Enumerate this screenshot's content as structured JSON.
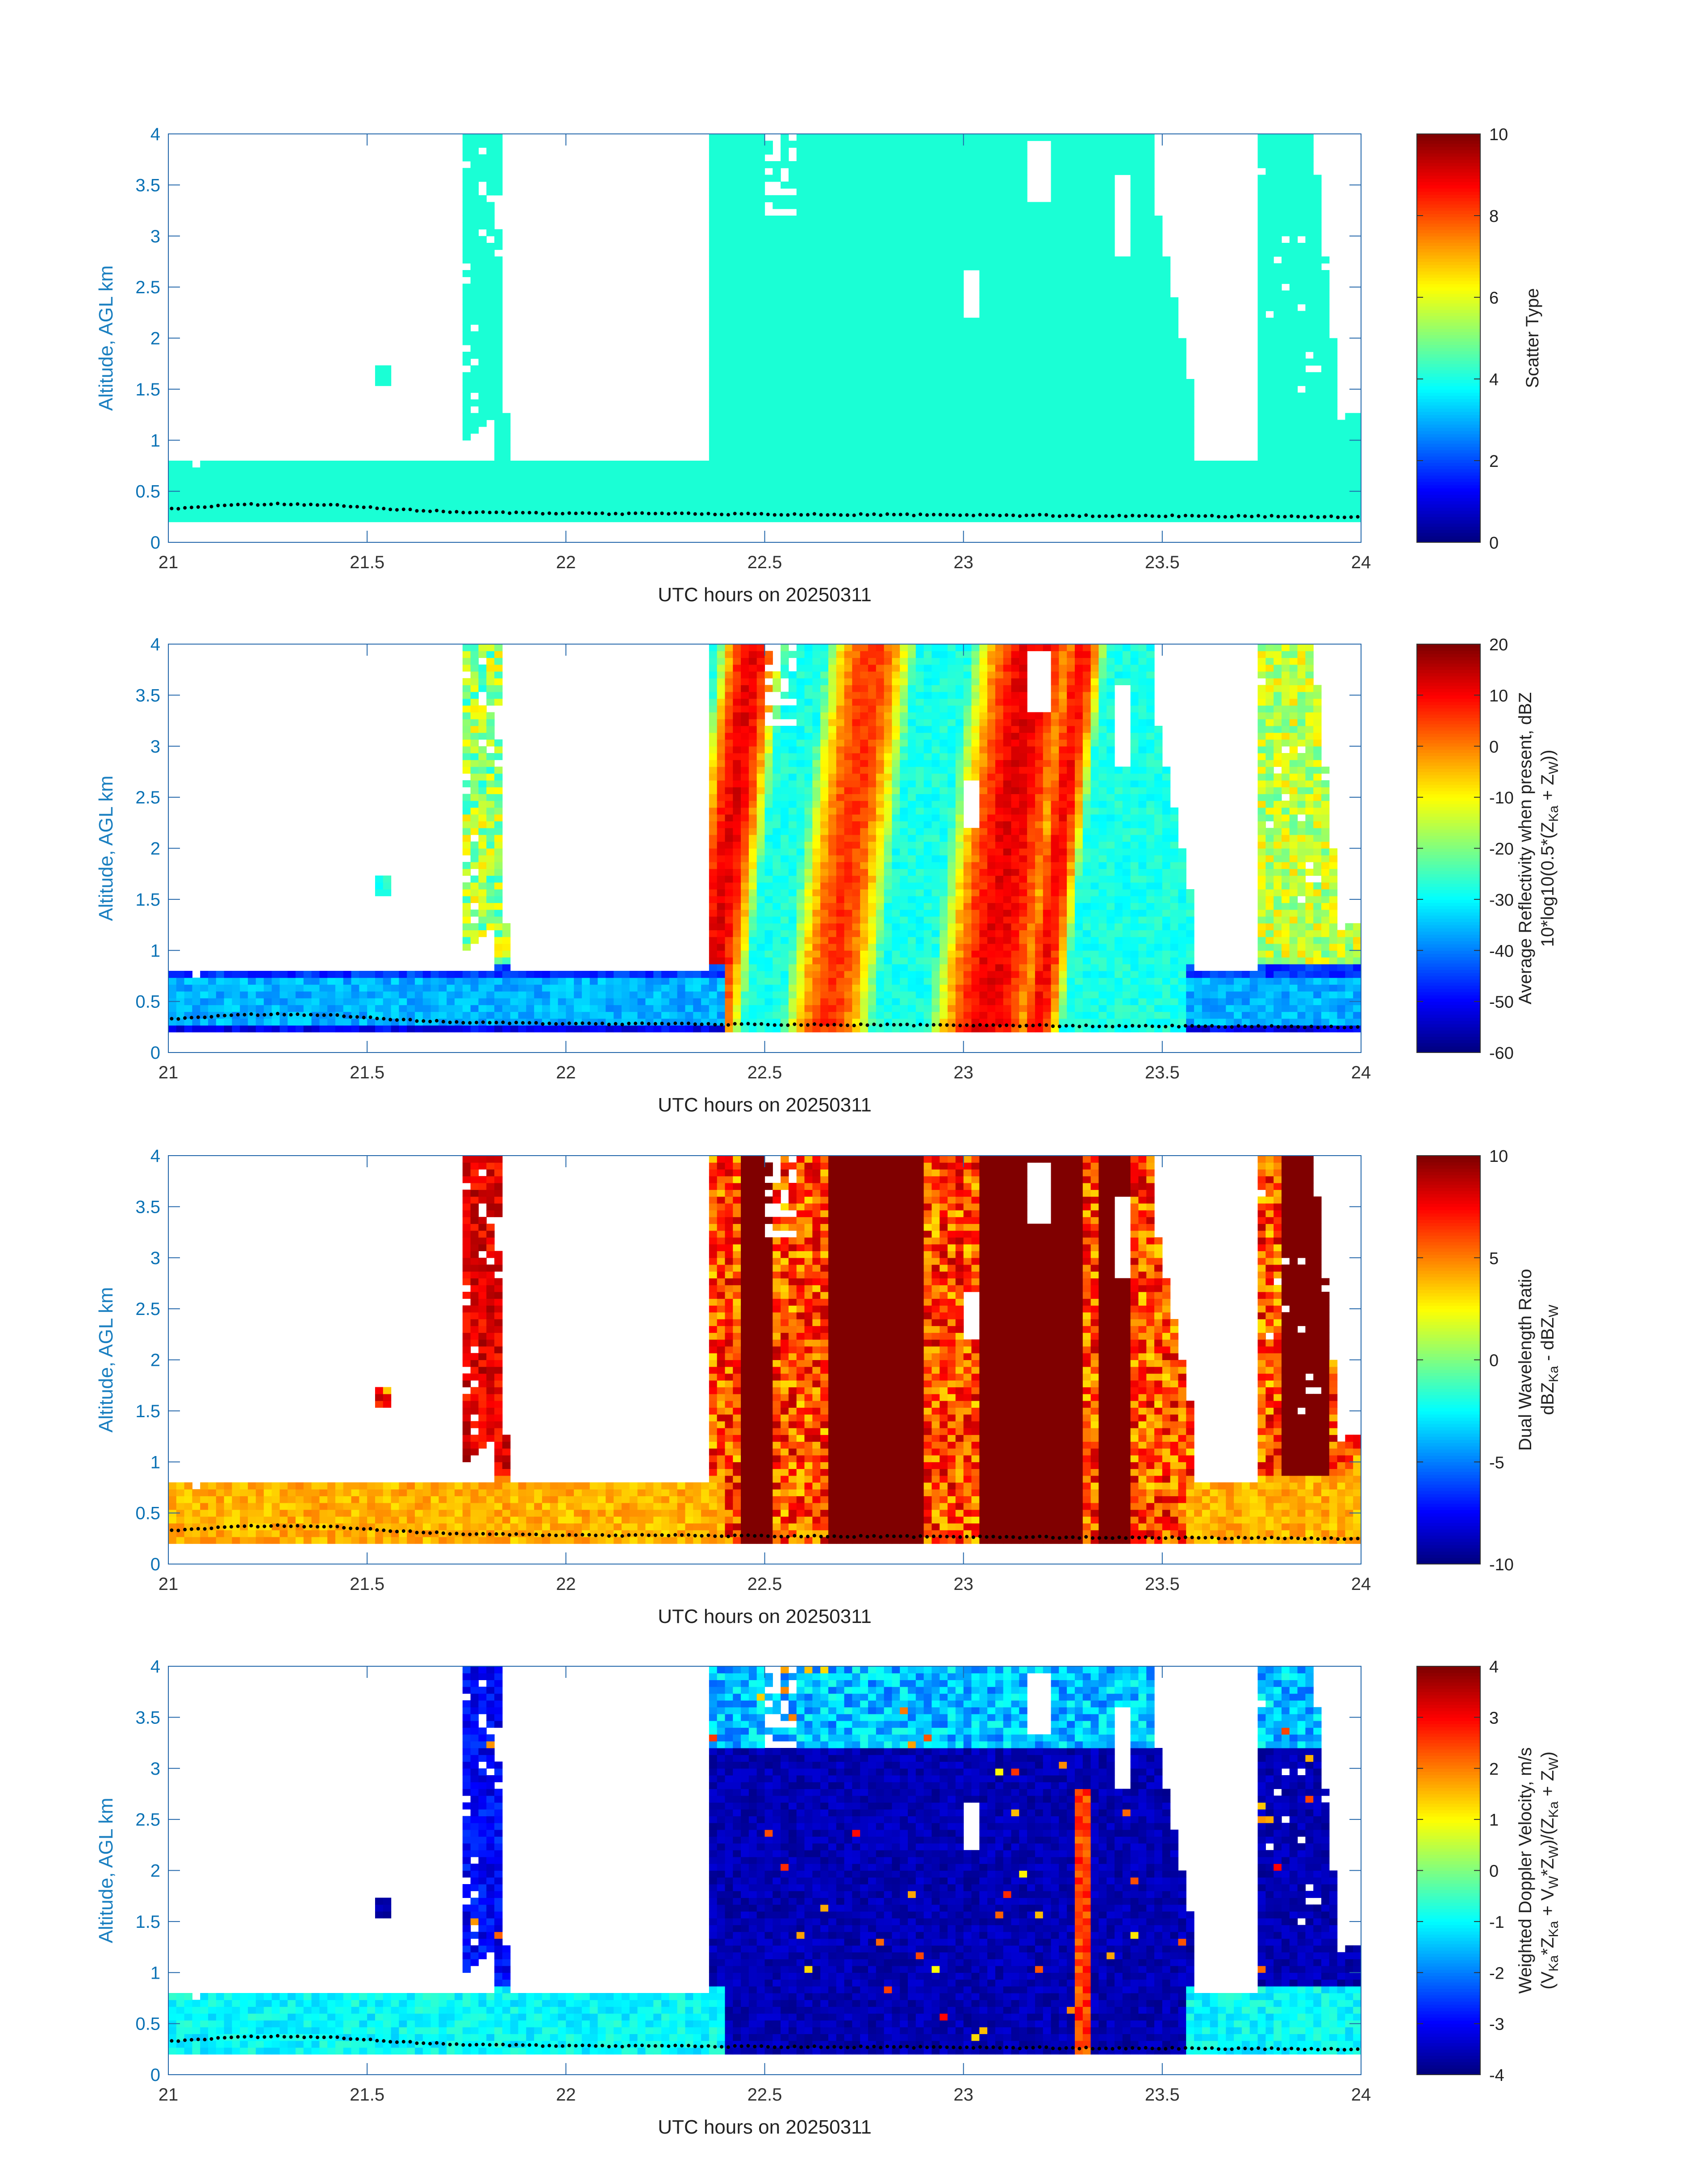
{
  "figure": {
    "panels_count": 4
  },
  "chart_data": [
    {
      "type": "heatmap",
      "title": "",
      "xlabel": "UTC hours on 20250311",
      "ylabel": "Altitude, AGL km",
      "xlim": [
        21,
        24
      ],
      "ylim": [
        0,
        4
      ],
      "x_ticks": [
        "21",
        "21.5",
        "22",
        "22.5",
        "23",
        "23.5",
        "24"
      ],
      "y_ticks": [
        "0",
        "0.5",
        "1",
        "1.5",
        "2",
        "2.5",
        "3",
        "3.5",
        "4"
      ],
      "colorbar": {
        "label_lines": [
          "Scatter Type"
        ],
        "range": [
          0,
          10
        ],
        "ticks": [
          "0",
          "2",
          "4",
          "6",
          "8",
          "10"
        ],
        "colormap": "jet"
      },
      "field_description": "Uniform value ~4 (cyan) wherever echo present",
      "echo_mask": {
        "boundary_layer_top_km": 0.8,
        "boundary_layer_bottom_km": 0.2,
        "shafts": [
          {
            "x": [
              21.75,
              21.85
            ],
            "top_km": 4.0,
            "bottom_km": 1.0
          },
          {
            "x": [
              22.37,
              22.6
            ],
            "top_km": 4.0,
            "bottom_km": 0.2
          },
          {
            "x": [
              22.6,
              23.55
            ],
            "top_km": 4.0,
            "bottom_km": 0.2
          },
          {
            "x": [
              23.75,
              23.98
            ],
            "top_km": 4.0,
            "bottom_km": 0.8
          }
        ],
        "isolated_blob": {
          "x": [
            21.53,
            21.55
          ],
          "y_km": [
            1.55,
            1.75
          ]
        }
      },
      "ground_dots_km": 0.3
    },
    {
      "type": "heatmap",
      "title": "",
      "xlabel": "UTC hours on 20250311",
      "ylabel": "Altitude, AGL km",
      "xlim": [
        21,
        24
      ],
      "ylim": [
        0,
        4
      ],
      "x_ticks": [
        "21",
        "21.5",
        "22",
        "22.5",
        "23",
        "23.5",
        "24"
      ],
      "y_ticks": [
        "0",
        "0.5",
        "1",
        "1.5",
        "2",
        "2.5",
        "3",
        "3.5",
        "4"
      ],
      "colorbar": {
        "label_lines": [
          "Average Reflectivity when present, dBZ",
          "10*log10(0.5*(Z",
          "Ka",
          " + Z",
          "W",
          "))"
        ],
        "range": [
          -60,
          20
        ],
        "ticks": [
          "-60",
          "-50",
          "-40",
          "-30",
          "-20",
          "-10",
          "0",
          "10",
          "20"
        ],
        "colormap": "jet"
      },
      "field_description": "Boundary layer ~-35 dBZ; precipitation shafts 22.45-23.35 up to ~15 dBZ",
      "precip_cores": [
        {
          "x": [
            22.4,
            22.55
          ],
          "value_dbz": 10
        },
        {
          "x": [
            22.65,
            22.85
          ],
          "value_dbz": 5
        },
        {
          "x": [
            23.05,
            23.3
          ],
          "value_dbz": 12
        },
        {
          "x": [
            23.75,
            23.85
          ],
          "value_dbz": -10
        }
      ],
      "ground_dots_km": 0.3
    },
    {
      "type": "heatmap",
      "title": "",
      "xlabel": "UTC hours on 20250311",
      "ylabel": "Altitude, AGL km",
      "xlim": [
        21,
        24
      ],
      "ylim": [
        0,
        4
      ],
      "x_ticks": [
        "21",
        "21.5",
        "22",
        "22.5",
        "23",
        "23.5",
        "24"
      ],
      "y_ticks": [
        "0",
        "0.5",
        "1",
        "1.5",
        "2",
        "2.5",
        "3",
        "3.5",
        "4"
      ],
      "colorbar": {
        "label_lines": [
          "Dual Wavelength Ratio",
          "dBZ",
          "Ka",
          " - dBZ",
          "W"
        ],
        "range": [
          -10,
          10
        ],
        "ticks": [
          "-10",
          "-5",
          "0",
          "5",
          "10"
        ],
        "colormap": "jet"
      },
      "field_description": "Boundary layer ~4 dB (yellow); precip shafts ~10 dB (dark red)",
      "ground_dots_km": 0.3
    },
    {
      "type": "heatmap",
      "title": "",
      "xlabel": "UTC hours on 20250311",
      "ylabel": "Altitude, AGL km",
      "xlim": [
        21,
        24
      ],
      "ylim": [
        0,
        4
      ],
      "x_ticks": [
        "21",
        "21.5",
        "22",
        "22.5",
        "23",
        "23.5",
        "24"
      ],
      "y_ticks": [
        "0",
        "0.5",
        "1",
        "1.5",
        "2",
        "2.5",
        "3",
        "3.5",
        "4"
      ],
      "colorbar": {
        "label_lines": [
          "Weighted Doppler Velocity, m/s",
          "(V",
          "Ka",
          "*Z",
          "Ka",
          " + V",
          "W",
          "*Z",
          "W",
          ")/(Z",
          "Ka",
          " + Z",
          "W",
          ")"
        ],
        "range": [
          -4,
          4
        ],
        "ticks": [
          "-4",
          "-3",
          "-2",
          "-1",
          "0",
          "1",
          "2",
          "3",
          "4"
        ],
        "colormap": "jet"
      },
      "field_description": "Boundary layer ~-1 m/s; precip shafts ~-3.5 m/s",
      "ground_dots_km": 0.3
    }
  ]
}
